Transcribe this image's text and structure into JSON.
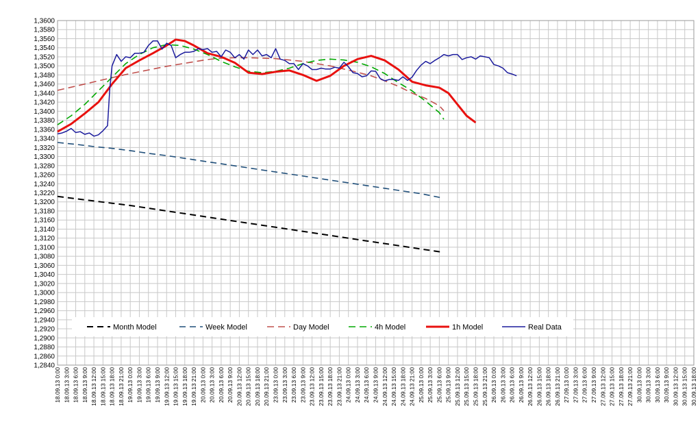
{
  "chart_data": {
    "type": "line",
    "title": "",
    "xlabel": "",
    "ylabel": "",
    "ylim": [
      1.284,
      1.36
    ],
    "y_ticks": [
      "1,2840",
      "1,2860",
      "1,2880",
      "1,2900",
      "1,2920",
      "1,2940",
      "1,2960",
      "1,2980",
      "1,3000",
      "1,3020",
      "1,3040",
      "1,3060",
      "1,3080",
      "1,3100",
      "1,3120",
      "1,3140",
      "1,3160",
      "1,3180",
      "1,3200",
      "1,3220",
      "1,3240",
      "1,3260",
      "1,3280",
      "1,3300",
      "1,3320",
      "1,3340",
      "1,3360",
      "1,3380",
      "1,3400",
      "1,3420",
      "1,3440",
      "1,3460",
      "1,3480",
      "1,3500",
      "1,3520",
      "1,3540",
      "1,3560",
      "1,3580",
      "1,3600"
    ],
    "x_ticks": [
      "18.09.13 0:00",
      "18.09.13 3:00",
      "18.09.13 6:00",
      "18.09.13 9:00",
      "18.09.13 12:00",
      "18.09.13 15:00",
      "18.09.13 18:00",
      "18.09.13 21:00",
      "19.09.13 0:00",
      "19.09.13 3:00",
      "19.09.13 6:00",
      "19.09.13 9:00",
      "19.09.13 12:00",
      "19.09.13 15:00",
      "19.09.13 18:00",
      "19.09.13 21:00",
      "20.09.13 0:00",
      "20.09.13 3:00",
      "20.09.13 6:00",
      "20.09.13 9:00",
      "20.09.13 12:00",
      "20.09.13 15:00",
      "20.09.13 18:00",
      "20.09.13 21:00",
      "23.09.13 0:00",
      "23.09.13 3:00",
      "23.09.13 6:00",
      "23.09.13 9:00",
      "23.09.13 12:00",
      "23.09.13 15:00",
      "23.09.13 18:00",
      "23.09.13 21:00",
      "24.09.13 0:00",
      "24.09.13 3:00",
      "24.09.13 6:00",
      "24.09.13 9:00",
      "24.09.13 12:00",
      "24.09.13 15:00",
      "24.09.13 18:00",
      "24.09.13 21:00",
      "25.09.13 0:00",
      "25.09.13 3:00",
      "25.09.13 6:00",
      "25.09.13 9:00",
      "25.09.13 12:00",
      "25.09.13 15:00",
      "25.09.13 18:00",
      "25.09.13 21:00",
      "26.09.13 0:00",
      "26.09.13 3:00",
      "26.09.13 6:00",
      "26.09.13 9:00",
      "26.09.13 12:00",
      "26.09.13 15:00",
      "26.09.13 18:00",
      "26.09.13 21:00",
      "27.09.13 0:00",
      "27.09.13 3:00",
      "27.09.13 6:00",
      "27.09.13 9:00",
      "27.09.13 12:00",
      "27.09.13 15:00",
      "27.09.13 18:00",
      "27.09.13 21:00",
      "30.09.13 0:00",
      "30.09.13 3:00",
      "30.09.13 6:00",
      "30.09.13 9:00",
      "30.09.13 12:00",
      "30.09.13 15:00",
      "30.09.13 18:00"
    ],
    "grid": true,
    "legend_position": "bottom-inside",
    "series": [
      {
        "name": "Month Model",
        "color": "#000000",
        "dash": "dashed",
        "points": [
          [
            0,
            1.3212
          ],
          [
            4,
            1.3207
          ],
          [
            8,
            1.3202
          ],
          [
            12,
            1.3197
          ],
          [
            16,
            1.3192
          ],
          [
            20,
            1.3186
          ],
          [
            24,
            1.318
          ],
          [
            28,
            1.3174
          ],
          [
            32,
            1.3168
          ],
          [
            36,
            1.3162
          ],
          [
            40,
            1.3156
          ],
          [
            44,
            1.315
          ],
          [
            48,
            1.3144
          ],
          [
            52,
            1.3138
          ],
          [
            56,
            1.3132
          ],
          [
            60,
            1.3126
          ],
          [
            64,
            1.312
          ],
          [
            68,
            1.3114
          ],
          [
            72,
            1.3108
          ],
          [
            76,
            1.3102
          ],
          [
            80,
            1.3096
          ],
          [
            84,
            1.309
          ],
          [
            85,
            1.309
          ]
        ]
      },
      {
        "name": "Week Model",
        "color": "#1f4e79",
        "dash": "dashed",
        "points": [
          [
            0,
            1.3331
          ],
          [
            4,
            1.3327
          ],
          [
            8,
            1.3322
          ],
          [
            12,
            1.3318
          ],
          [
            16,
            1.3313
          ],
          [
            20,
            1.3307
          ],
          [
            24,
            1.3302
          ],
          [
            28,
            1.3296
          ],
          [
            32,
            1.329
          ],
          [
            36,
            1.3284
          ],
          [
            40,
            1.3278
          ],
          [
            44,
            1.3272
          ],
          [
            48,
            1.3266
          ],
          [
            52,
            1.326
          ],
          [
            56,
            1.3254
          ],
          [
            60,
            1.3248
          ],
          [
            64,
            1.3242
          ],
          [
            68,
            1.3236
          ],
          [
            72,
            1.323
          ],
          [
            76,
            1.3224
          ],
          [
            80,
            1.3218
          ],
          [
            84,
            1.321
          ],
          [
            85,
            1.3208
          ]
        ]
      },
      {
        "name": "Day Model",
        "color": "#c0504d",
        "dash": "dashed",
        "points": [
          [
            0,
            1.3446
          ],
          [
            3,
            1.3453
          ],
          [
            6,
            1.346
          ],
          [
            9,
            1.3467
          ],
          [
            12,
            1.3474
          ],
          [
            15,
            1.3481
          ],
          [
            18,
            1.3487
          ],
          [
            21,
            1.3493
          ],
          [
            24,
            1.3499
          ],
          [
            27,
            1.3504
          ],
          [
            30,
            1.3509
          ],
          [
            33,
            1.3514
          ],
          [
            36,
            1.3517
          ],
          [
            39,
            1.3518
          ],
          [
            42,
            1.3518
          ],
          [
            45,
            1.3517
          ],
          [
            48,
            1.3516
          ],
          [
            51,
            1.3513
          ],
          [
            54,
            1.351
          ],
          [
            57,
            1.3505
          ],
          [
            60,
            1.35
          ],
          [
            63,
            1.3493
          ],
          [
            66,
            1.3486
          ],
          [
            69,
            1.3478
          ],
          [
            72,
            1.3467
          ],
          [
            75,
            1.3455
          ],
          [
            78,
            1.344
          ],
          [
            81,
            1.3428
          ],
          [
            84,
            1.3412
          ],
          [
            85,
            1.3401
          ]
        ]
      },
      {
        "name": "4h Model",
        "color": "#00a800",
        "dash": "dashed",
        "points": [
          [
            0,
            1.337
          ],
          [
            3,
            1.339
          ],
          [
            6,
            1.3415
          ],
          [
            9,
            1.3445
          ],
          [
            12,
            1.3475
          ],
          [
            15,
            1.3505
          ],
          [
            18,
            1.3525
          ],
          [
            21,
            1.354
          ],
          [
            24,
            1.3547
          ],
          [
            27,
            1.3545
          ],
          [
            30,
            1.3537
          ],
          [
            33,
            1.3525
          ],
          [
            36,
            1.351
          ],
          [
            39,
            1.3498
          ],
          [
            42,
            1.3488
          ],
          [
            45,
            1.3485
          ],
          [
            48,
            1.3488
          ],
          [
            51,
            1.3495
          ],
          [
            54,
            1.3505
          ],
          [
            57,
            1.3512
          ],
          [
            60,
            1.3515
          ],
          [
            63,
            1.3513
          ],
          [
            66,
            1.3508
          ],
          [
            69,
            1.3498
          ],
          [
            72,
            1.3483
          ],
          [
            75,
            1.3463
          ],
          [
            78,
            1.3445
          ],
          [
            81,
            1.3422
          ],
          [
            84,
            1.3397
          ],
          [
            85,
            1.3382
          ]
        ]
      },
      {
        "name": "1h Model",
        "color": "#e8110f",
        "dash": "solid",
        "points": [
          [
            0,
            1.3355
          ],
          [
            3,
            1.3372
          ],
          [
            6,
            1.3395
          ],
          [
            9,
            1.342
          ],
          [
            12,
            1.346
          ],
          [
            15,
            1.3495
          ],
          [
            18,
            1.3512
          ],
          [
            21,
            1.3528
          ],
          [
            24,
            1.3545
          ],
          [
            26,
            1.3558
          ],
          [
            28,
            1.3555
          ],
          [
            30,
            1.3545
          ],
          [
            33,
            1.3528
          ],
          [
            36,
            1.352
          ],
          [
            39,
            1.3507
          ],
          [
            42,
            1.3485
          ],
          [
            45,
            1.3482
          ],
          [
            48,
            1.3487
          ],
          [
            51,
            1.349
          ],
          [
            54,
            1.348
          ],
          [
            57,
            1.3467
          ],
          [
            60,
            1.3478
          ],
          [
            63,
            1.35
          ],
          [
            66,
            1.3515
          ],
          [
            69,
            1.3522
          ],
          [
            72,
            1.3512
          ],
          [
            75,
            1.3492
          ],
          [
            78,
            1.3465
          ],
          [
            81,
            1.3457
          ],
          [
            84,
            1.3452
          ],
          [
            86,
            1.344
          ],
          [
            88,
            1.3415
          ],
          [
            90,
            1.339
          ],
          [
            92,
            1.3375
          ]
        ]
      },
      {
        "name": "Real Data",
        "color": "#1a1a9c",
        "dash": "solid",
        "points": [
          [
            0,
            1.335
          ],
          [
            1,
            1.3352
          ],
          [
            2,
            1.3356
          ],
          [
            3,
            1.3362
          ],
          [
            4,
            1.3353
          ],
          [
            5,
            1.3355
          ],
          [
            6,
            1.3349
          ],
          [
            7,
            1.3352
          ],
          [
            8,
            1.3345
          ],
          [
            9,
            1.3348
          ],
          [
            10,
            1.3357
          ],
          [
            11,
            1.3368
          ],
          [
            11.5,
            1.345
          ],
          [
            12,
            1.35
          ],
          [
            13,
            1.3525
          ],
          [
            14,
            1.351
          ],
          [
            15,
            1.352
          ],
          [
            16,
            1.3518
          ],
          [
            17,
            1.3528
          ],
          [
            18,
            1.3528
          ],
          [
            19,
            1.353
          ],
          [
            20,
            1.3545
          ],
          [
            21,
            1.3555
          ],
          [
            22,
            1.3555
          ],
          [
            23,
            1.3537
          ],
          [
            24,
            1.355
          ],
          [
            25,
            1.3545
          ],
          [
            26,
            1.3518
          ],
          [
            27,
            1.3525
          ],
          [
            28,
            1.353
          ],
          [
            29,
            1.353
          ],
          [
            30,
            1.3532
          ],
          [
            31,
            1.3538
          ],
          [
            32,
            1.3536
          ],
          [
            33,
            1.3538
          ],
          [
            34,
            1.353
          ],
          [
            35,
            1.3532
          ],
          [
            36,
            1.352
          ],
          [
            37,
            1.3535
          ],
          [
            38,
            1.353
          ],
          [
            39,
            1.3518
          ],
          [
            40,
            1.3525
          ],
          [
            41,
            1.3515
          ],
          [
            42,
            1.3535
          ],
          [
            43,
            1.3525
          ],
          [
            44,
            1.3535
          ],
          [
            45,
            1.3522
          ],
          [
            46,
            1.3525
          ],
          [
            47,
            1.3518
          ],
          [
            48,
            1.3538
          ],
          [
            49,
            1.3515
          ],
          [
            50,
            1.3512
          ],
          [
            51,
            1.3505
          ],
          [
            52,
            1.3505
          ],
          [
            53,
            1.3492
          ],
          [
            54,
            1.3505
          ],
          [
            55,
            1.35
          ],
          [
            56,
            1.3492
          ],
          [
            57,
            1.3492
          ],
          [
            58,
            1.3495
          ],
          [
            59,
            1.3493
          ],
          [
            60,
            1.3493
          ],
          [
            61,
            1.3497
          ],
          [
            62,
            1.3495
          ],
          [
            63,
            1.3508
          ],
          [
            64,
            1.3498
          ],
          [
            65,
            1.3485
          ],
          [
            66,
            1.3483
          ],
          [
            67,
            1.3476
          ],
          [
            68,
            1.3478
          ],
          [
            69,
            1.3489
          ],
          [
            70,
            1.3488
          ],
          [
            71,
            1.3472
          ],
          [
            72,
            1.3467
          ],
          [
            73,
            1.347
          ],
          [
            74,
            1.347
          ],
          [
            75,
            1.3468
          ],
          [
            76,
            1.3476
          ],
          [
            77,
            1.3468
          ],
          [
            78,
            1.3475
          ],
          [
            79,
            1.349
          ],
          [
            80,
            1.3502
          ],
          [
            81,
            1.351
          ],
          [
            82,
            1.3505
          ],
          [
            83,
            1.3512
          ],
          [
            84,
            1.3518
          ],
          [
            85,
            1.3525
          ],
          [
            86,
            1.3522
          ],
          [
            87,
            1.3525
          ],
          [
            88,
            1.3525
          ],
          [
            89,
            1.3514
          ],
          [
            90,
            1.3518
          ],
          [
            91,
            1.352
          ],
          [
            92,
            1.3515
          ],
          [
            93,
            1.3522
          ],
          [
            94,
            1.352
          ],
          [
            95,
            1.3518
          ],
          [
            96,
            1.3503
          ],
          [
            97,
            1.35
          ],
          [
            98,
            1.3495
          ],
          [
            99,
            1.3485
          ],
          [
            100,
            1.3482
          ],
          [
            101,
            1.3478
          ]
        ]
      }
    ]
  }
}
